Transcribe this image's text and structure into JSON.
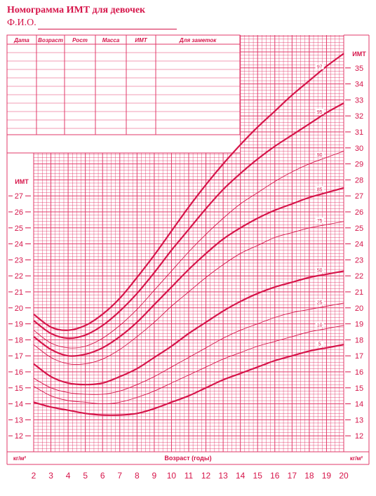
{
  "header": {
    "title": "Номограмма ИМТ для девочек",
    "fio_label": "Ф.И.О."
  },
  "table": {
    "columns": [
      "Дата",
      "Возраст",
      "Рост",
      "Масса",
      "ИМТ",
      "Для заметок"
    ]
  },
  "colors": {
    "accent": "#d6154a",
    "grid": "#e23a6a"
  },
  "chart_data": {
    "type": "line",
    "title": "Номограмма ИМТ для девочек",
    "xlabel": "Возраст (годы)",
    "ylabel": "ИМТ",
    "y_unit": "кг/м²",
    "xlim": [
      2,
      20
    ],
    "ylim": [
      11,
      36
    ],
    "x_ticks": [
      2,
      3,
      4,
      5,
      6,
      7,
      8,
      9,
      10,
      11,
      12,
      13,
      14,
      15,
      16,
      17,
      18,
      19,
      20
    ],
    "y_ticks_left": [
      12,
      13,
      14,
      15,
      16,
      17,
      18,
      19,
      20,
      21,
      22,
      23,
      24,
      25,
      26,
      27
    ],
    "y_ticks_right": [
      12,
      13,
      14,
      15,
      16,
      17,
      18,
      19,
      20,
      21,
      22,
      23,
      24,
      25,
      26,
      27,
      28,
      29,
      30,
      31,
      32,
      33,
      34,
      35
    ],
    "grid": true,
    "x": [
      2,
      3,
      4,
      5,
      6,
      7,
      8,
      9,
      10,
      11,
      12,
      13,
      14,
      15,
      16,
      17,
      18,
      19,
      20
    ],
    "series": [
      {
        "name": "97",
        "bold": true,
        "values": [
          19.6,
          18.8,
          18.6,
          18.9,
          19.6,
          20.6,
          21.9,
          23.3,
          24.8,
          26.3,
          27.7,
          29.0,
          30.2,
          31.3,
          32.3,
          33.3,
          34.2,
          35.1,
          35.9
        ]
      },
      {
        "name": "95",
        "bold": true,
        "values": [
          19.2,
          18.4,
          18.1,
          18.3,
          18.9,
          19.8,
          20.9,
          22.2,
          23.6,
          24.9,
          26.2,
          27.4,
          28.4,
          29.3,
          30.1,
          30.8,
          31.5,
          32.2,
          32.8
        ]
      },
      {
        "name": "90",
        "bold": false,
        "values": [
          18.6,
          17.8,
          17.5,
          17.6,
          18.1,
          18.9,
          19.9,
          21.1,
          22.3,
          23.5,
          24.6,
          25.6,
          26.5,
          27.2,
          27.9,
          28.5,
          29.0,
          29.4,
          29.8
        ]
      },
      {
        "name": "85",
        "bold": true,
        "values": [
          18.2,
          17.4,
          17.0,
          17.1,
          17.5,
          18.2,
          19.1,
          20.2,
          21.3,
          22.4,
          23.4,
          24.3,
          25.0,
          25.6,
          26.1,
          26.5,
          26.9,
          27.2,
          27.5
        ]
      },
      {
        "name": "75",
        "bold": false,
        "values": [
          17.7,
          16.9,
          16.5,
          16.5,
          16.8,
          17.4,
          18.2,
          19.1,
          20.1,
          21.0,
          21.9,
          22.7,
          23.4,
          23.9,
          24.4,
          24.7,
          25.0,
          25.2,
          25.4
        ]
      },
      {
        "name": "50",
        "bold": true,
        "values": [
          16.5,
          15.7,
          15.3,
          15.2,
          15.3,
          15.7,
          16.2,
          16.9,
          17.6,
          18.4,
          19.1,
          19.8,
          20.4,
          20.9,
          21.3,
          21.6,
          21.9,
          22.1,
          22.3
        ]
      },
      {
        "name": "25",
        "bold": false,
        "values": [
          15.6,
          15.0,
          14.7,
          14.6,
          14.6,
          14.8,
          15.2,
          15.7,
          16.3,
          16.9,
          17.5,
          18.1,
          18.6,
          19.0,
          19.4,
          19.7,
          19.9,
          20.1,
          20.3
        ]
      },
      {
        "name": "10",
        "bold": false,
        "values": [
          15.1,
          14.5,
          14.2,
          14.1,
          14.0,
          14.1,
          14.4,
          14.8,
          15.3,
          15.8,
          16.3,
          16.8,
          17.2,
          17.6,
          17.9,
          18.2,
          18.5,
          18.7,
          18.9
        ]
      },
      {
        "name": "5",
        "bold": true,
        "values": [
          14.1,
          13.8,
          13.6,
          13.4,
          13.3,
          13.3,
          13.4,
          13.7,
          14.1,
          14.5,
          15.0,
          15.5,
          15.9,
          16.3,
          16.7,
          17.0,
          17.3,
          17.5,
          17.7
        ]
      }
    ]
  }
}
